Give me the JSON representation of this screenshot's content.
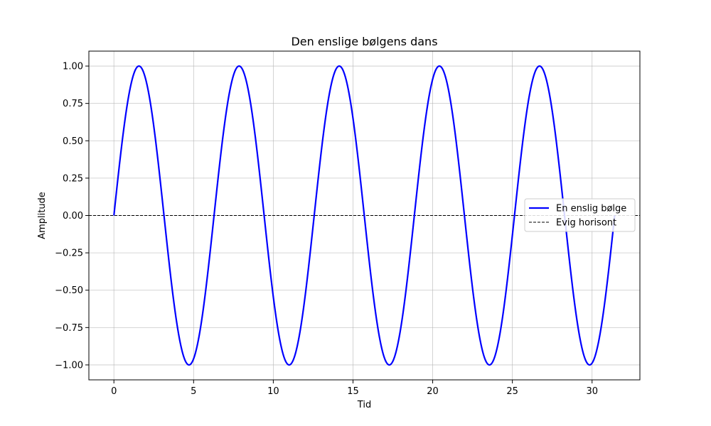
{
  "chart_data": {
    "type": "line",
    "title": "Den enslige bølgens dans",
    "xlabel": "Tid",
    "ylabel": "Amplitude",
    "xlim": [
      -1.5708,
      33.0009
    ],
    "ylim": [
      -1.1,
      1.1
    ],
    "x_ticks": [
      0,
      5,
      10,
      15,
      20,
      25,
      30
    ],
    "y_ticks": [
      -1.0,
      -0.75,
      -0.5,
      -0.25,
      0.0,
      0.25,
      0.5,
      0.75,
      1.0
    ],
    "x_tick_labels": [
      "0",
      "5",
      "10",
      "15",
      "20",
      "25",
      "30"
    ],
    "y_tick_labels": [
      "−1.00",
      "−0.75",
      "−0.50",
      "−0.25",
      "0.00",
      "0.25",
      "0.50",
      "0.75",
      "1.00"
    ],
    "grid": true,
    "legend_position": "center-right",
    "series": [
      {
        "name": "En enslig bølge",
        "function": "sin(x)",
        "x_range": [
          0,
          31.4159
        ],
        "color": "#0000ff",
        "style": "solid"
      },
      {
        "name": "Evig horisont",
        "function": "0",
        "color": "#000000",
        "style": "dashed"
      }
    ]
  }
}
